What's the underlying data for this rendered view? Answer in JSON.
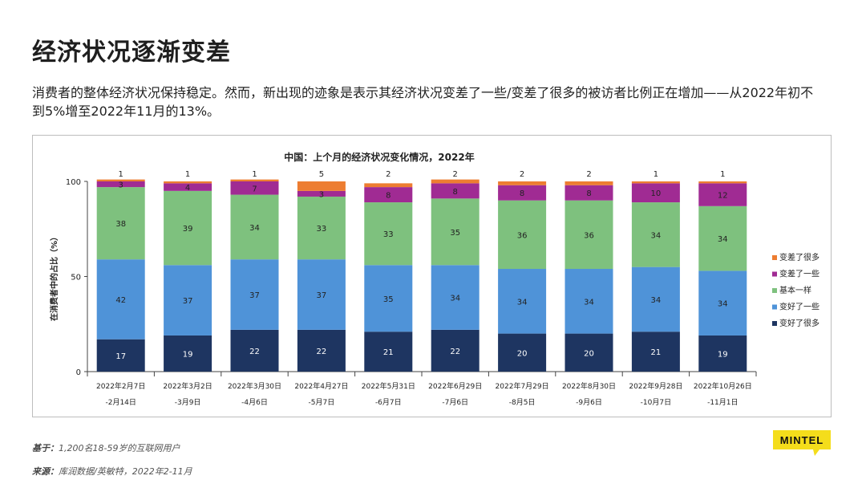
{
  "page": {
    "title": "经济状况逐渐变差",
    "subtitle": "消费者的整体经济状况保持稳定。然而，新出现的迹象是表示其经济状况变差了一些/变差了很多的被访者比例正在增加——从2022年初不到5%增至2022年11月的13%。"
  },
  "footer": {
    "base_label": "基于：",
    "base_text": "1,200名18-59岁的互联网用户",
    "source_label": "来源：",
    "source_text": "库润数据/英敏特，2022年2-11月"
  },
  "logo": {
    "text": "MINTEL"
  },
  "colors": {
    "very_worse": "#ed7d31",
    "slightly_worse": "#a02b93",
    "same": "#7ec17e",
    "slightly_better": "#4f93d8",
    "much_better": "#1e3561"
  },
  "chart_data": {
    "type": "bar",
    "stacked": true,
    "title": "中国：上个月的经济状况变化情况，2022年",
    "ylabel": "在消费者中的占比（%）",
    "xlabel": "",
    "ylim": [
      0,
      100
    ],
    "yticks": [
      0,
      50,
      100
    ],
    "legend_position": "right",
    "categories": [
      [
        "2022年2月7日",
        "-2月14日"
      ],
      [
        "2022年3月2日",
        "-3月9日"
      ],
      [
        "2022年3月30日",
        "-4月6日"
      ],
      [
        "2022年4月27日",
        "-5月7日"
      ],
      [
        "2022年5月31日",
        "-6月7日"
      ],
      [
        "2022年6月29日",
        "-7月6日"
      ],
      [
        "2022年7月29日",
        "-8月5日"
      ],
      [
        "2022年8月30日",
        "-9月6日"
      ],
      [
        "2022年9月28日",
        "-10月7日"
      ],
      [
        "2022年10月26日",
        "-11月1日"
      ]
    ],
    "series": [
      {
        "name": "变好了很多",
        "color_key": "much_better",
        "values": [
          17,
          19,
          22,
          22,
          21,
          22,
          20,
          20,
          21,
          19
        ]
      },
      {
        "name": "变好了一些",
        "color_key": "slightly_better",
        "values": [
          42,
          37,
          37,
          37,
          35,
          34,
          34,
          34,
          34,
          34
        ]
      },
      {
        "name": "基本一样",
        "color_key": "same",
        "values": [
          38,
          39,
          34,
          33,
          33,
          35,
          36,
          36,
          34,
          34
        ]
      },
      {
        "name": "变差了一些",
        "color_key": "slightly_worse",
        "values": [
          3,
          4,
          7,
          3,
          8,
          8,
          8,
          8,
          10,
          12
        ]
      },
      {
        "name": "变差了很多",
        "color_key": "very_worse",
        "values": [
          1,
          1,
          1,
          5,
          2,
          2,
          2,
          2,
          1,
          1
        ]
      }
    ]
  }
}
